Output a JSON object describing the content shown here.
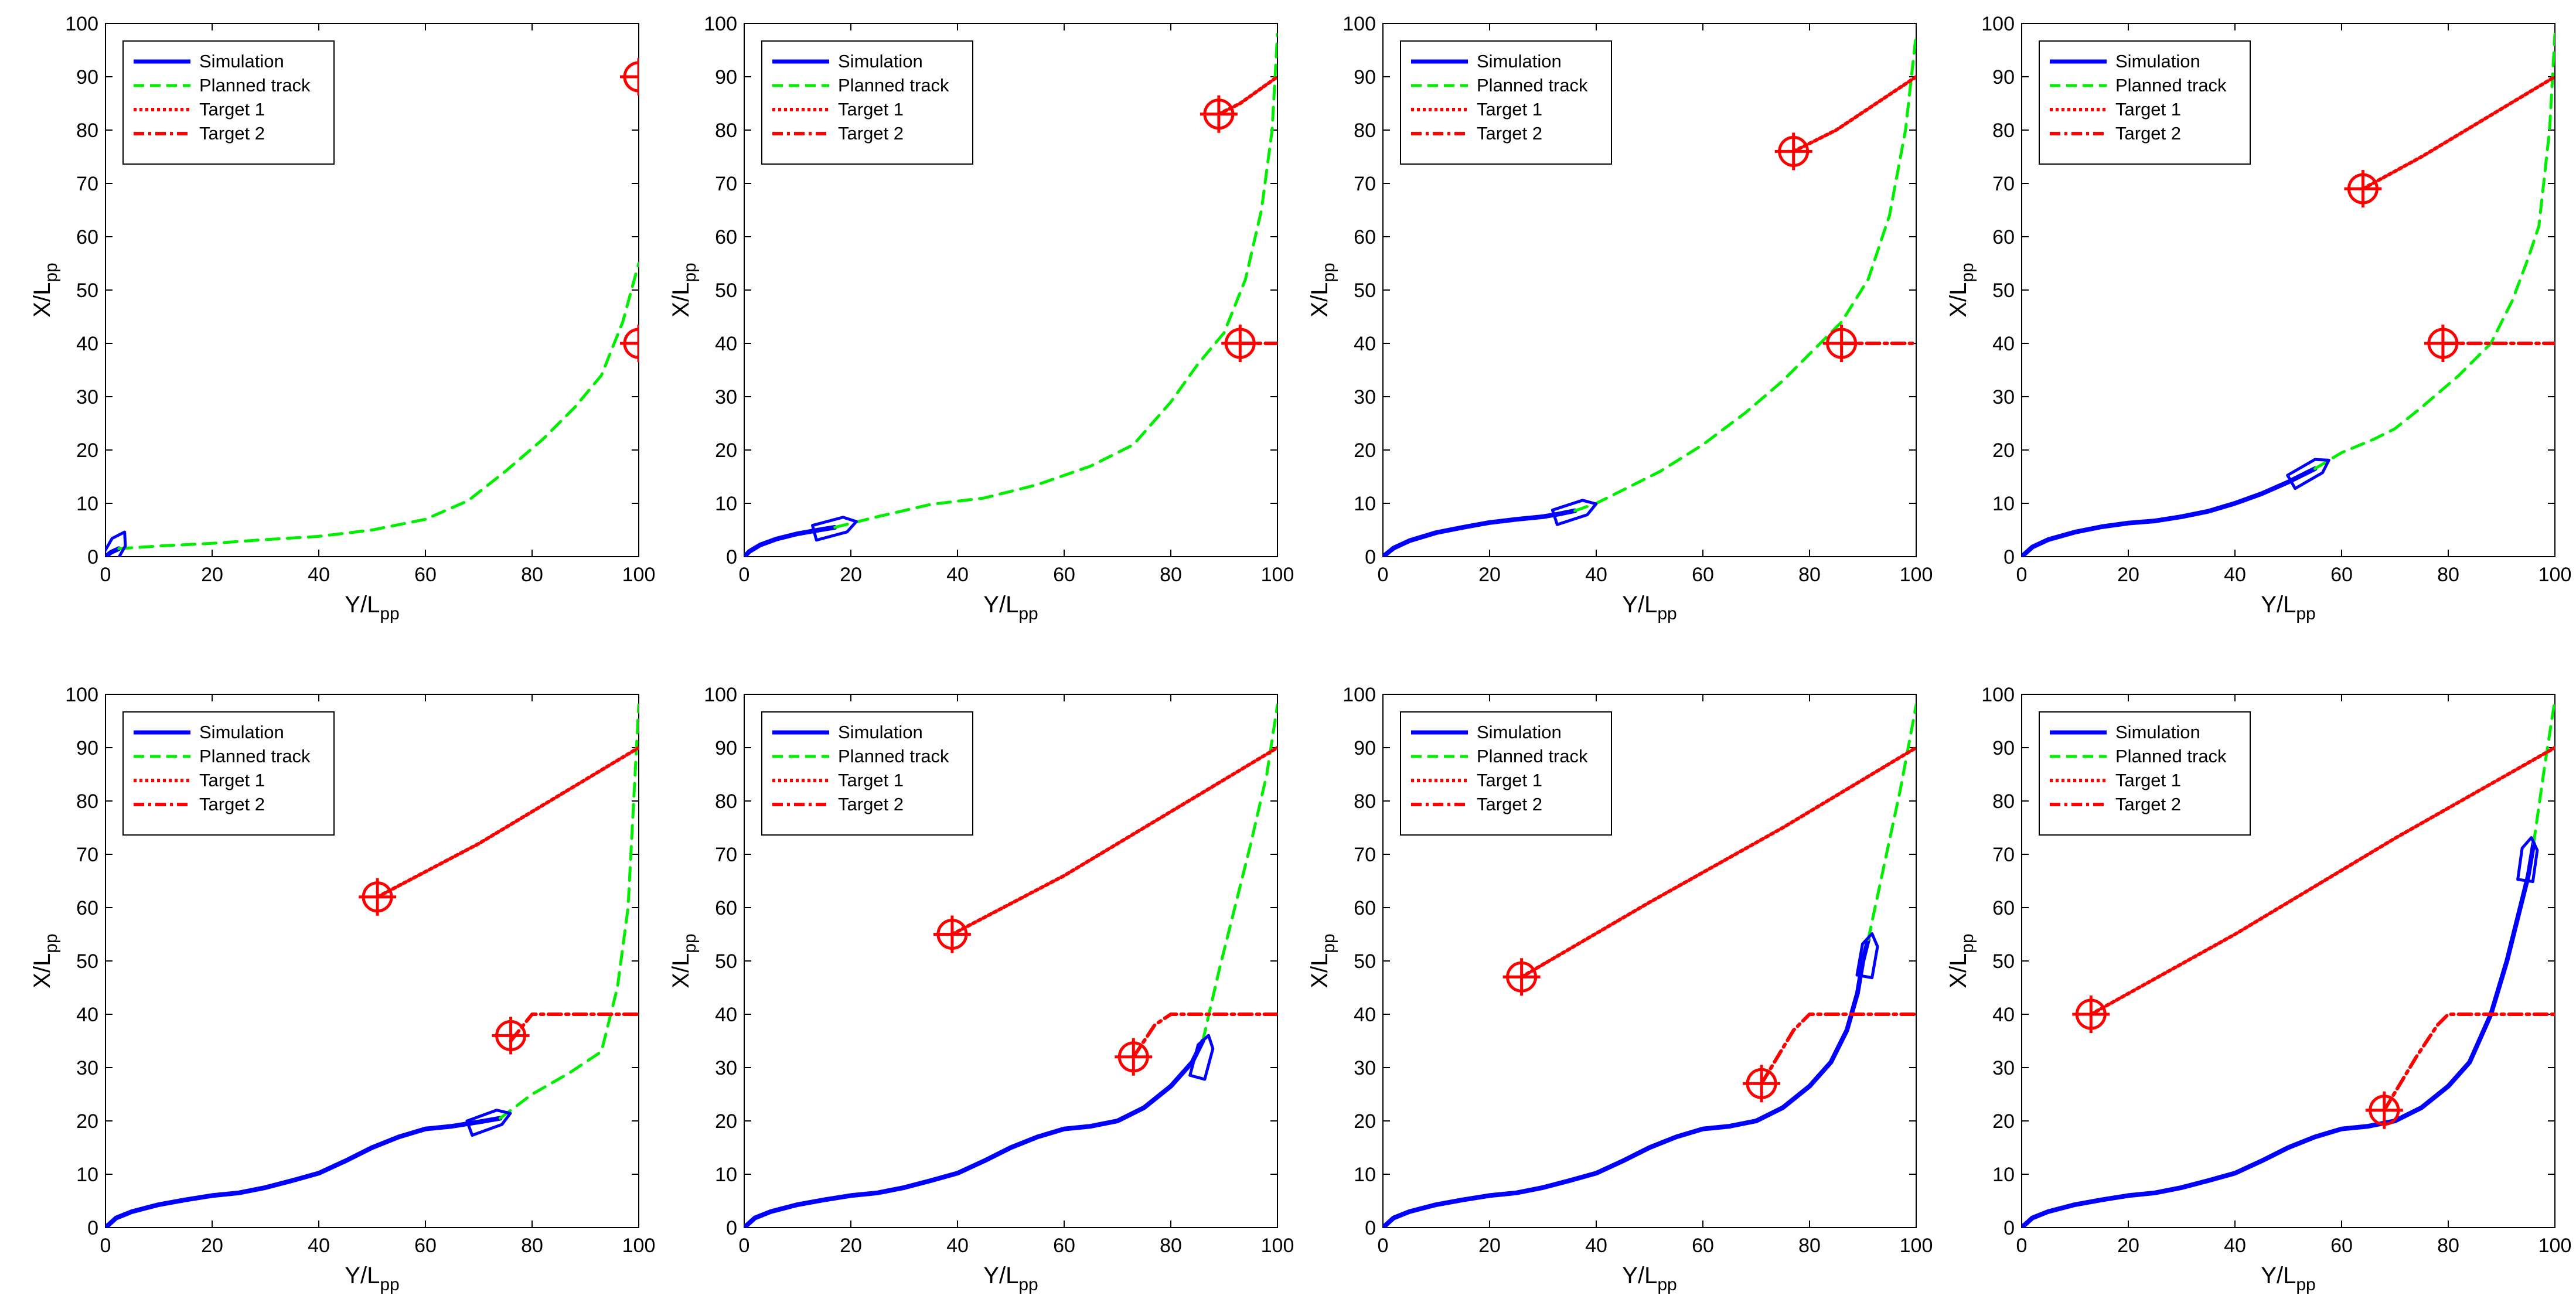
{
  "figure": {
    "rows": 2,
    "cols": 4,
    "colors": {
      "simulation": "#0000ff",
      "planned": "#00ee00",
      "target": "#ff0000",
      "axis": "#000000"
    }
  },
  "axes": {
    "xlabel_main": "Y/L",
    "xlabel_sub": "pp",
    "ylabel_main": "X/L",
    "ylabel_sub": "pp",
    "xlim": [
      0,
      100
    ],
    "ylim": [
      0,
      100
    ],
    "xticks": [
      0,
      20,
      40,
      60,
      80,
      100
    ],
    "yticks": [
      0,
      10,
      20,
      30,
      40,
      50,
      60,
      70,
      80,
      90,
      100
    ]
  },
  "legend": {
    "placement": "top-left",
    "entries": [
      {
        "key": "simulation",
        "label": "Simulation"
      },
      {
        "key": "planned",
        "label": "Planned track"
      },
      {
        "key": "target1",
        "label": "Target 1"
      },
      {
        "key": "target2",
        "label": "Target 2"
      }
    ]
  },
  "chart_data": [
    {
      "type": "line",
      "panel": 1,
      "series": [
        {
          "name": "Simulation",
          "x": [
            0,
            1,
            2.5
          ],
          "y": [
            0,
            0.8,
            1.5
          ]
        },
        {
          "name": "Planned track",
          "x": [
            2.5,
            10,
            20,
            30,
            40,
            50,
            60,
            68,
            75,
            82,
            88,
            93,
            97,
            100
          ],
          "y": [
            1.5,
            2.0,
            2.5,
            3.2,
            3.8,
            5.0,
            7.0,
            10.5,
            16.0,
            22.0,
            28.0,
            34.0,
            44.0,
            55.0
          ]
        },
        {
          "name": "Target 1",
          "x": [
            100
          ],
          "y": [
            90
          ]
        },
        {
          "name": "Target 2",
          "x": [
            100
          ],
          "y": [
            40
          ]
        }
      ],
      "ship": {
        "x": 1.5,
        "y": 1.0,
        "heading": 60
      },
      "targets": [
        {
          "x": 100,
          "y": 90
        },
        {
          "x": 100,
          "y": 40
        }
      ]
    },
    {
      "type": "line",
      "panel": 2,
      "series": [
        {
          "name": "Simulation",
          "x": [
            0,
            1,
            3,
            6,
            10,
            14,
            17
          ],
          "y": [
            0,
            1.0,
            2.2,
            3.3,
            4.3,
            5.0,
            5.5
          ]
        },
        {
          "name": "Planned track",
          "x": [
            17,
            25,
            35,
            45,
            55,
            65,
            73,
            80,
            85,
            90,
            94,
            97,
            99,
            100
          ],
          "y": [
            5.5,
            7.5,
            9.8,
            11.0,
            13.5,
            17.0,
            21.0,
            29.0,
            36.0,
            42.0,
            52.0,
            65.0,
            80.0,
            98.0
          ]
        },
        {
          "name": "Target 1",
          "x": [
            89,
            93,
            100
          ],
          "y": [
            83,
            85,
            90
          ]
        },
        {
          "name": "Target 2",
          "x": [
            93,
            100
          ],
          "y": [
            40,
            40
          ]
        }
      ],
      "ship": {
        "x": 17,
        "y": 5.5,
        "heading": 15
      },
      "targets": [
        {
          "x": 89,
          "y": 83
        },
        {
          "x": 93,
          "y": 40
        }
      ]
    },
    {
      "type": "line",
      "panel": 3,
      "series": [
        {
          "name": "Simulation",
          "x": [
            0,
            2,
            5,
            10,
            15,
            20,
            25,
            30,
            33,
            36
          ],
          "y": [
            0,
            1.6,
            3.0,
            4.5,
            5.5,
            6.4,
            7.0,
            7.5,
            8.0,
            8.6
          ]
        },
        {
          "name": "Planned track",
          "x": [
            36,
            40,
            45,
            52,
            60,
            68,
            75,
            81,
            86,
            91,
            95,
            98,
            100
          ],
          "y": [
            8.6,
            10.0,
            12.5,
            16.0,
            21.0,
            27.0,
            33.0,
            39.0,
            44.0,
            52.0,
            64.0,
            80.0,
            98.0
          ]
        },
        {
          "name": "Target 1",
          "x": [
            77,
            85,
            100
          ],
          "y": [
            76,
            80,
            90
          ]
        },
        {
          "name": "Target 2",
          "x": [
            86,
            100
          ],
          "y": [
            40,
            40
          ]
        }
      ],
      "ship": {
        "x": 36,
        "y": 8.6,
        "heading": 18
      },
      "targets": [
        {
          "x": 77,
          "y": 76
        },
        {
          "x": 86,
          "y": 40
        }
      ]
    },
    {
      "type": "line",
      "panel": 4,
      "series": [
        {
          "name": "Simulation",
          "x": [
            0,
            2,
            5,
            10,
            15,
            20,
            25,
            30,
            35,
            40,
            45,
            50,
            55
          ],
          "y": [
            0,
            1.8,
            3.2,
            4.6,
            5.6,
            6.3,
            6.7,
            7.5,
            8.5,
            10.0,
            11.8,
            14.0,
            16.5
          ]
        },
        {
          "name": "Planned track",
          "x": [
            55,
            60,
            66,
            70,
            75,
            82,
            88,
            92,
            95,
            97,
            99,
            100
          ],
          "y": [
            16.5,
            19.5,
            22.0,
            24.0,
            28.0,
            34.0,
            40.0,
            48.0,
            56.0,
            62.0,
            80.0,
            98.0
          ]
        },
        {
          "name": "Target 1",
          "x": [
            64,
            75,
            100
          ],
          "y": [
            69,
            75,
            90
          ]
        },
        {
          "name": "Target 2",
          "x": [
            79,
            100
          ],
          "y": [
            40,
            40
          ]
        }
      ],
      "ship": {
        "x": 54,
        "y": 16.0,
        "heading": 30
      },
      "targets": [
        {
          "x": 64,
          "y": 69
        },
        {
          "x": 79,
          "y": 40
        }
      ]
    },
    {
      "type": "line",
      "panel": 5,
      "series": [
        {
          "name": "Simulation",
          "x": [
            0,
            2,
            5,
            10,
            15,
            20,
            25,
            30,
            35,
            40,
            45,
            50,
            55,
            60,
            65,
            70,
            74
          ],
          "y": [
            0,
            1.8,
            3.0,
            4.3,
            5.2,
            6.0,
            6.5,
            7.5,
            8.8,
            10.2,
            12.5,
            15.0,
            17.0,
            18.5,
            19.0,
            19.8,
            20.5
          ]
        },
        {
          "name": "Planned track",
          "x": [
            74,
            80,
            87,
            93,
            96,
            98,
            100
          ],
          "y": [
            20.5,
            25.0,
            29.0,
            33.0,
            45.0,
            60.0,
            98.0
          ]
        },
        {
          "name": "Target 1",
          "x": [
            51,
            70,
            100
          ],
          "y": [
            62,
            72,
            90
          ]
        },
        {
          "name": "Target 2",
          "x": [
            76,
            80,
            100
          ],
          "y": [
            35,
            40,
            40
          ]
        }
      ],
      "ship": {
        "x": 72,
        "y": 20.0,
        "heading": 20
      },
      "targets": [
        {
          "x": 51,
          "y": 62
        },
        {
          "x": 76,
          "y": 36
        }
      ]
    },
    {
      "type": "line",
      "panel": 6,
      "series": [
        {
          "name": "Simulation",
          "x": [
            0,
            2,
            5,
            10,
            15,
            20,
            25,
            30,
            35,
            40,
            45,
            50,
            55,
            60,
            65,
            70,
            75,
            80,
            84,
            86
          ],
          "y": [
            0,
            1.8,
            3.0,
            4.3,
            5.2,
            6.0,
            6.5,
            7.5,
            8.8,
            10.2,
            12.5,
            15.0,
            17.0,
            18.5,
            19.0,
            20.0,
            22.5,
            26.5,
            31.0,
            35.0
          ]
        },
        {
          "name": "Planned track",
          "x": [
            86,
            89,
            92,
            95,
            98,
            100
          ],
          "y": [
            35,
            48,
            60,
            72,
            85,
            98
          ]
        },
        {
          "name": "Target 1",
          "x": [
            39,
            60,
            80,
            100
          ],
          "y": [
            55,
            66,
            78,
            90
          ]
        },
        {
          "name": "Target 2",
          "x": [
            73,
            77,
            80,
            100
          ],
          "y": [
            32,
            38,
            40,
            40
          ]
        }
      ],
      "ship": {
        "x": 86,
        "y": 32,
        "heading": 75
      },
      "targets": [
        {
          "x": 39,
          "y": 55
        },
        {
          "x": 73,
          "y": 32
        }
      ]
    },
    {
      "type": "line",
      "panel": 7,
      "series": [
        {
          "name": "Simulation",
          "x": [
            0,
            2,
            5,
            10,
            15,
            20,
            25,
            30,
            35,
            40,
            45,
            50,
            55,
            60,
            65,
            70,
            75,
            80,
            84,
            87,
            89,
            90,
            91
          ],
          "y": [
            0,
            1.8,
            3.0,
            4.3,
            5.2,
            6.0,
            6.5,
            7.5,
            8.8,
            10.2,
            12.5,
            15.0,
            17.0,
            18.5,
            19.0,
            20.0,
            22.5,
            26.5,
            31.0,
            37.0,
            44.0,
            50.0,
            54.0
          ]
        },
        {
          "name": "Planned track",
          "x": [
            91,
            94,
            97,
            100
          ],
          "y": [
            54,
            68,
            82,
            98
          ]
        },
        {
          "name": "Target 1",
          "x": [
            26,
            50,
            75,
            100
          ],
          "y": [
            47,
            61,
            75,
            90
          ]
        },
        {
          "name": "Target 2",
          "x": [
            71,
            77,
            80,
            100
          ],
          "y": [
            27,
            37,
            40,
            40
          ]
        }
      ],
      "ship": {
        "x": 91,
        "y": 51,
        "heading": 80
      },
      "targets": [
        {
          "x": 26,
          "y": 47
        },
        {
          "x": 71,
          "y": 27
        }
      ]
    },
    {
      "type": "line",
      "panel": 8,
      "series": [
        {
          "name": "Simulation",
          "x": [
            0,
            2,
            5,
            10,
            15,
            20,
            25,
            30,
            35,
            40,
            45,
            50,
            55,
            60,
            65,
            70,
            75,
            80,
            84,
            88,
            91,
            93,
            95,
            96
          ],
          "y": [
            0,
            1.8,
            3.0,
            4.3,
            5.2,
            6.0,
            6.5,
            7.5,
            8.8,
            10.2,
            12.5,
            15.0,
            17.0,
            18.5,
            19.0,
            20.0,
            22.5,
            26.5,
            31.0,
            40.0,
            50.0,
            58.0,
            66.0,
            72.0
          ]
        },
        {
          "name": "Planned track",
          "x": [
            96,
            98,
            100
          ],
          "y": [
            72,
            86,
            99
          ]
        },
        {
          "name": "Target 1",
          "x": [
            13,
            40,
            70,
            100
          ],
          "y": [
            40,
            55,
            73,
            90
          ]
        },
        {
          "name": "Target 2",
          "x": [
            68,
            74,
            78,
            80,
            100
          ],
          "y": [
            22,
            32,
            38,
            40,
            40
          ]
        }
      ],
      "ship": {
        "x": 95,
        "y": 69,
        "heading": 82
      },
      "targets": [
        {
          "x": 13,
          "y": 40
        },
        {
          "x": 68,
          "y": 22
        }
      ]
    }
  ]
}
